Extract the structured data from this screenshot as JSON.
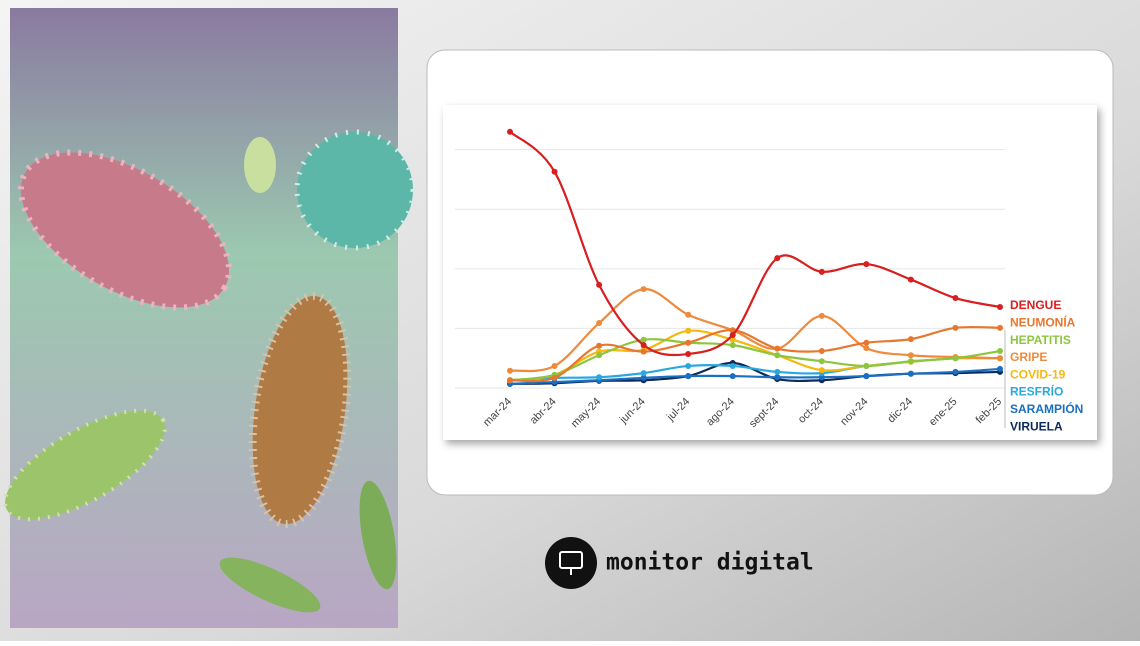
{
  "chart_data": {
    "type": "line",
    "categories": [
      "mar-24",
      "abr-24",
      "may-24",
      "jun-24",
      "jul-24",
      "ago-24",
      "sept-24",
      "oct-24",
      "nov-24",
      "dic-24",
      "ene-25",
      "feb-25"
    ],
    "ylim": [
      0,
      4.75
    ],
    "yticks": [
      0,
      1,
      2,
      3,
      4
    ],
    "grid": true,
    "show_ytick_labels": false,
    "legend": "right",
    "series": [
      {
        "name": "DENGUE",
        "color": "#d81e1e",
        "values": [
          4.3,
          3.63,
          1.73,
          0.72,
          0.57,
          0.89,
          2.18,
          1.95,
          2.08,
          1.82,
          1.51,
          1.36
        ]
      },
      {
        "name": "NEUMONÍA",
        "color": "#e8772e",
        "values": [
          0.13,
          0.17,
          0.71,
          0.61,
          0.76,
          0.97,
          0.66,
          0.62,
          0.76,
          0.82,
          1.01,
          1.01
        ]
      },
      {
        "name": "HEPATITIS",
        "color": "#8cc63f",
        "values": [
          0.13,
          0.22,
          0.55,
          0.81,
          0.76,
          0.72,
          0.55,
          0.45,
          0.37,
          0.45,
          0.5,
          0.62
        ]
      },
      {
        "name": "GRIPE",
        "color": "#ee8a3c",
        "values": [
          0.29,
          0.37,
          1.09,
          1.66,
          1.23,
          0.97,
          0.66,
          1.21,
          0.67,
          0.55,
          0.52,
          0.5
        ]
      },
      {
        "name": "COVID-19",
        "color": "#f6b80e",
        "values": [
          0.13,
          0.22,
          0.61,
          0.64,
          0.96,
          0.81,
          0.55,
          0.3,
          0.37,
          0.44,
          0.5,
          0.5
        ]
      },
      {
        "name": "RESFRÍO",
        "color": "#29a8e0",
        "values": [
          0.13,
          0.17,
          0.18,
          0.25,
          0.37,
          0.37,
          0.27,
          0.25,
          0.37,
          0.44,
          0.5,
          0.5
        ]
      },
      {
        "name": "SARAMPIÓN",
        "color": "#1a6fc0",
        "values": [
          0.07,
          0.1,
          0.13,
          0.17,
          0.2,
          0.2,
          0.18,
          0.18,
          0.2,
          0.24,
          0.27,
          0.32
        ]
      },
      {
        "name": "VIRUELA",
        "color": "#0d2a5c",
        "values": [
          0.07,
          0.08,
          0.12,
          0.13,
          0.2,
          0.42,
          0.15,
          0.13,
          0.2,
          0.24,
          0.25,
          0.27
        ]
      }
    ]
  },
  "brand": "monitor digital"
}
